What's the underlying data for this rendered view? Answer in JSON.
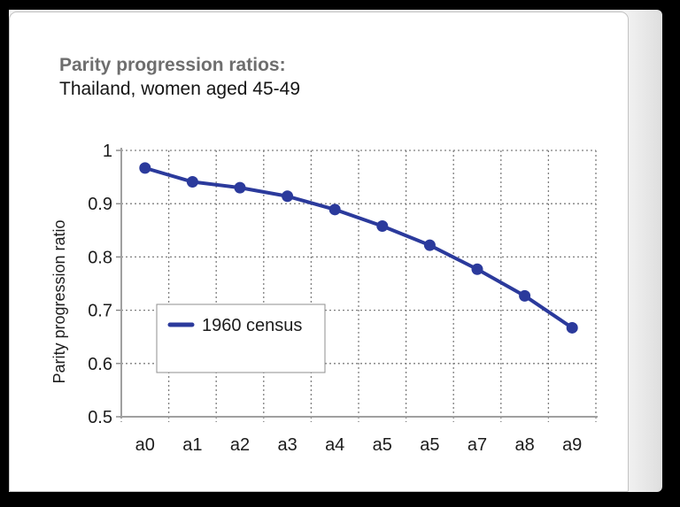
{
  "header": {
    "title": "Parity progression ratios:",
    "subtitle": "Thailand, women aged 45-49"
  },
  "chart_data": {
    "type": "line",
    "categories": [
      "a0",
      "a1",
      "a2",
      "a3",
      "a4",
      "a5",
      "a5",
      "a7",
      "a8",
      "a9"
    ],
    "series": [
      {
        "name": "1960 census",
        "values": [
          0.967,
          0.941,
          0.93,
          0.914,
          0.889,
          0.858,
          0.822,
          0.777,
          0.727,
          0.667
        ],
        "color": "#2b3a9c"
      }
    ],
    "title": "Parity progression ratios: Thailand, women aged 45-49",
    "xlabel": "",
    "ylabel": "Parity progression ratio",
    "ylim": [
      0.5,
      1.0
    ],
    "yticks": [
      1,
      0.9,
      0.8,
      0.7,
      0.6,
      0.5
    ],
    "ytick_labels": [
      "1",
      "0.9",
      "0.8",
      "0.7",
      "0.6",
      "0.5"
    ],
    "grid": true,
    "grid_style": "dashed",
    "legend_position": "inside-left",
    "legend": [
      "1960 census"
    ]
  },
  "colors": {
    "frame": "#000000",
    "card_bg": "#ffffff",
    "card_border": "#c3c3c3",
    "title_gray": "#6e6e6e",
    "text_dark": "#1c1c1c",
    "grid_gray": "#7f7f7f",
    "axis_gray": "#a0a0a0",
    "series_blue": "#2b3a9c",
    "legend_border": "#8f8f8f"
  }
}
